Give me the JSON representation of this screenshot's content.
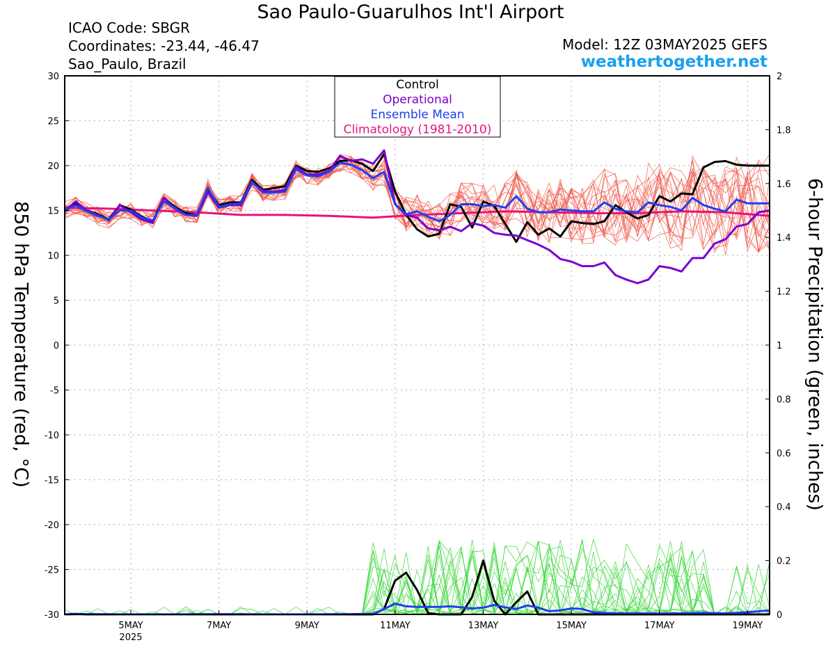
{
  "header": {
    "title": "Sao Paulo-Guarulhos Int'l Airport",
    "icao": "ICAO Code: SBGR",
    "coords": "Coordinates: -23.44, -46.47",
    "location": "Sao_Paulo, Brazil",
    "model": "Model: 12Z 03MAY2025 GEFS",
    "site": "weathertogether.net"
  },
  "colors": {
    "control": "#000000",
    "operational": "#7a00cc",
    "ensemble_mean": "#1f3ff0",
    "climatology": "#e8127d",
    "members_temp": "#f0584a",
    "members_precip": "#3ed83e",
    "brand": "#1aa0ee"
  },
  "chart_data": {
    "type": "line",
    "title": "Sao Paulo-Guarulhos Int'l Airport",
    "ylabel_left": "850 hPa Temperature (red, °C)",
    "ylabel_right": "6-hour Precipitation (green, inches)",
    "ylim_left": [
      -30,
      30
    ],
    "ylim_right": [
      0,
      2
    ],
    "yticks_left": [
      30,
      25,
      20,
      15,
      10,
      5,
      0,
      -5,
      -10,
      -15,
      -20,
      -25,
      -30
    ],
    "yticks_right": [
      2,
      1.8,
      1.6,
      1.4,
      1.2,
      1,
      0.8,
      0.6,
      0.4,
      0.2,
      0
    ],
    "xrange_days": [
      3.5,
      19.5
    ],
    "xticks": [
      {
        "day": 5,
        "label": "5MAY",
        "sub": "2025"
      },
      {
        "day": 7,
        "label": "7MAY",
        "sub": ""
      },
      {
        "day": 9,
        "label": "9MAY",
        "sub": ""
      },
      {
        "day": 11,
        "label": "11MAY",
        "sub": ""
      },
      {
        "day": 13,
        "label": "13MAY",
        "sub": ""
      },
      {
        "day": 15,
        "label": "15MAY",
        "sub": ""
      },
      {
        "day": 17,
        "label": "17MAY",
        "sub": ""
      },
      {
        "day": 19,
        "label": "19MAY",
        "sub": ""
      }
    ],
    "grid": true,
    "legend_position": "top-center",
    "legend": [
      "Control",
      "Operational",
      "Ensemble Mean",
      "Climatology (1981-2010)"
    ],
    "temperature_series": [
      {
        "name": "Control",
        "color_key": "control",
        "width": 3,
        "x": [
          3.5,
          3.75,
          4,
          4.25,
          4.5,
          4.75,
          5,
          5.25,
          5.5,
          5.75,
          6,
          6.25,
          6.5,
          6.75,
          7,
          7.25,
          7.5,
          7.75,
          8,
          8.25,
          8.5,
          8.75,
          9,
          9.25,
          9.5,
          9.75,
          10,
          10.25,
          10.5,
          10.75,
          11,
          11.25,
          11.5,
          11.75,
          12,
          12.25,
          12.5,
          12.75,
          13,
          13.25,
          13.5,
          13.75,
          14,
          14.25,
          14.5,
          14.75,
          15,
          15.25,
          15.5,
          15.75,
          16,
          16.25,
          16.5,
          16.75,
          17,
          17.25,
          17.5,
          17.75,
          18,
          18.25,
          18.5,
          18.75,
          19,
          19.25,
          19.5
        ],
        "y": [
          14.9,
          15.8,
          15.0,
          14.6,
          14.0,
          15.6,
          15.1,
          14.3,
          13.8,
          16.4,
          15.4,
          14.7,
          14.5,
          17.3,
          15.6,
          15.9,
          15.9,
          18.4,
          17.3,
          17.5,
          17.7,
          20.0,
          19.4,
          19.3,
          19.7,
          20.5,
          20.6,
          20.2,
          19.4,
          21.3,
          17.1,
          14.5,
          12.9,
          12.1,
          12.4,
          15.7,
          15.4,
          13.1,
          16.0,
          15.5,
          13.5,
          11.5,
          13.7,
          12.3,
          13.0,
          12.1,
          13.8,
          13.6,
          13.5,
          13.8,
          15.6,
          14.8,
          14.1,
          14.5,
          16.6,
          16.0,
          16.9,
          16.8,
          19.8,
          20.4,
          20.5,
          20.1,
          20.0,
          20.0,
          20.0
        ]
      },
      {
        "name": "Operational",
        "color_key": "operational",
        "width": 3,
        "x": [
          3.5,
          3.75,
          4,
          4.25,
          4.5,
          4.75,
          5,
          5.25,
          5.5,
          5.75,
          6,
          6.25,
          6.5,
          6.75,
          7,
          7.25,
          7.5,
          7.75,
          8,
          8.25,
          8.5,
          8.75,
          9,
          9.25,
          9.5,
          9.75,
          10,
          10.25,
          10.5,
          10.75,
          11,
          11.25,
          11.5,
          11.75,
          12,
          12.25,
          12.5,
          12.75,
          13,
          13.25,
          13.5,
          13.75,
          14,
          14.25,
          14.5,
          14.75,
          15,
          15.25,
          15.5,
          15.75,
          16,
          16.25,
          16.5,
          16.75,
          17,
          17.25,
          17.5,
          17.75,
          18,
          18.25,
          18.5,
          18.75,
          19,
          19.25,
          19.5
        ],
        "y": [
          15.0,
          16.0,
          15.0,
          14.5,
          13.9,
          15.6,
          14.8,
          14.0,
          13.6,
          16.4,
          15.2,
          14.5,
          14.4,
          17.0,
          15.3,
          15.6,
          15.6,
          18.1,
          17.2,
          17.1,
          17.3,
          19.9,
          19.0,
          19.0,
          19.4,
          21.1,
          20.5,
          20.7,
          20.2,
          21.7,
          15.7,
          14.5,
          14.2,
          13.0,
          12.8,
          13.2,
          12.7,
          13.6,
          13.3,
          12.5,
          12.3,
          12.2,
          11.7,
          11.2,
          10.6,
          9.6,
          9.3,
          8.8,
          8.8,
          9.2,
          7.8,
          7.3,
          6.9,
          7.3,
          8.8,
          8.6,
          8.2,
          9.7,
          9.7,
          11.3,
          11.8,
          13.2,
          13.5,
          14.8,
          15.0
        ]
      },
      {
        "name": "Ensemble Mean",
        "color_key": "ensemble_mean",
        "width": 3,
        "x": [
          3.5,
          3.75,
          4,
          4.25,
          4.5,
          4.75,
          5,
          5.25,
          5.5,
          5.75,
          6,
          6.25,
          6.5,
          6.75,
          7,
          7.25,
          7.5,
          7.75,
          8,
          8.25,
          8.5,
          8.75,
          9,
          9.25,
          9.5,
          9.75,
          10,
          10.25,
          10.5,
          10.75,
          11,
          11.25,
          11.5,
          11.75,
          12,
          12.25,
          12.5,
          12.75,
          13,
          13.25,
          13.5,
          13.75,
          14,
          14.25,
          14.5,
          14.75,
          15,
          15.25,
          15.5,
          15.75,
          16,
          16.25,
          16.5,
          16.75,
          17,
          17.25,
          17.5,
          17.75,
          18,
          18.25,
          18.5,
          18.75,
          19,
          19.25,
          19.5
        ],
        "y": [
          15.0,
          15.6,
          14.9,
          14.4,
          14.0,
          15.0,
          15.0,
          14.2,
          13.9,
          16.0,
          15.3,
          14.5,
          14.5,
          17.5,
          15.4,
          15.7,
          15.8,
          18.2,
          17.0,
          17.0,
          17.1,
          19.6,
          18.9,
          18.8,
          19.3,
          20.3,
          20.1,
          19.5,
          18.6,
          19.3,
          15.7,
          14.6,
          14.9,
          14.3,
          13.8,
          14.5,
          15.7,
          15.7,
          15.5,
          15.6,
          15.3,
          16.6,
          15.2,
          14.8,
          14.8,
          15.1,
          15.0,
          14.9,
          14.9,
          15.9,
          15.2,
          14.9,
          14.8,
          15.9,
          15.6,
          15.4,
          15.0,
          16.4,
          15.6,
          15.2,
          14.9,
          16.2,
          15.8,
          15.8,
          15.8
        ]
      },
      {
        "name": "Climatology (1981-2010)",
        "color_key": "climatology",
        "width": 3,
        "x": [
          3.5,
          4.5,
          5.5,
          6.5,
          7.5,
          8.5,
          9.5,
          10.5,
          11.5,
          12.5,
          13.5,
          14.5,
          15.5,
          16.5,
          17.5,
          18.5,
          19.5
        ],
        "y": [
          15.3,
          15.2,
          15.0,
          14.8,
          14.5,
          14.5,
          14.4,
          14.2,
          14.5,
          14.7,
          14.9,
          14.8,
          14.7,
          14.7,
          14.9,
          14.8,
          14.4
        ]
      }
    ],
    "precip_series": [
      {
        "name": "Control",
        "color_key": "control",
        "width": 3,
        "x": [
          3.5,
          3.75,
          4,
          4.5,
          5,
          6,
          7,
          8,
          9,
          10,
          10.5,
          10.75,
          11,
          11.25,
          11.5,
          11.75,
          12,
          12.25,
          12.5,
          12.75,
          13,
          13.25,
          13.5,
          13.75,
          14,
          14.25,
          14.5,
          15,
          16,
          17,
          18,
          19,
          19.5
        ],
        "y": [
          0,
          0.002,
          0,
          0,
          0,
          0,
          0,
          0,
          0,
          0,
          0,
          0.02,
          0.125,
          0.155,
          0.09,
          0.005,
          0,
          0,
          0,
          0.065,
          0.2,
          0.05,
          0,
          0.045,
          0.085,
          0,
          0,
          0,
          0,
          0,
          0,
          0,
          0
        ]
      },
      {
        "name": "Ensemble Mean",
        "color_key": "ensemble_mean",
        "width": 3,
        "x": [
          3.5,
          4,
          5,
          6,
          7,
          8,
          9,
          10,
          10.5,
          10.75,
          11,
          11.25,
          11.5,
          11.75,
          12,
          12.25,
          12.5,
          12.75,
          13,
          13.25,
          13.5,
          13.75,
          14,
          14.25,
          14.5,
          14.75,
          15,
          15.25,
          15.5,
          15.75,
          16,
          16.5,
          17,
          17.5,
          18,
          18.5,
          19,
          19.5
        ],
        "y": [
          0,
          0.001,
          0,
          0,
          0.001,
          0,
          0,
          0.001,
          0.002,
          0.02,
          0.04,
          0.03,
          0.028,
          0.028,
          0.028,
          0.03,
          0.026,
          0.022,
          0.025,
          0.035,
          0.026,
          0.02,
          0.033,
          0.025,
          0.012,
          0.015,
          0.022,
          0.02,
          0.008,
          0.006,
          0.004,
          0.004,
          0.003,
          0.004,
          0.006,
          0.004,
          0.008,
          0.015
        ]
      }
    ]
  }
}
